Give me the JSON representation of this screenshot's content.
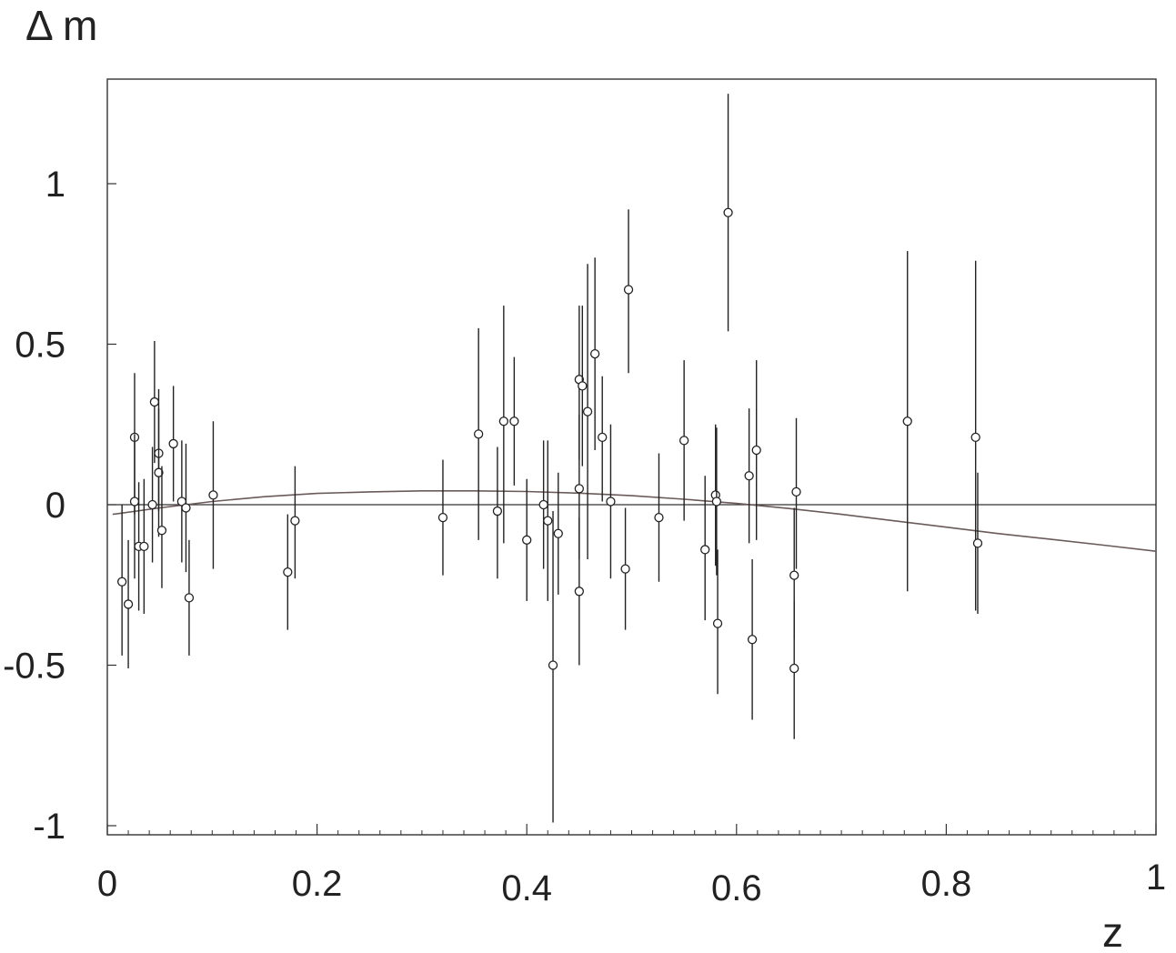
{
  "chart_data": {
    "type": "scatter",
    "ylabel": "Δ m",
    "xlabel": "z",
    "xlim": [
      0,
      1
    ],
    "ylim": [
      -1.02,
      1.33
    ],
    "grid": false,
    "xticks": [
      {
        "v": 0,
        "label": "0"
      },
      {
        "v": 0.2,
        "label": "0.2"
      },
      {
        "v": 0.4,
        "label": "0.4"
      },
      {
        "v": 0.6,
        "label": "0.6"
      },
      {
        "v": 0.8,
        "label": "0.8"
      },
      {
        "v": 1,
        "label": "1"
      }
    ],
    "yticks": [
      {
        "v": 1,
        "label": "1"
      },
      {
        "v": 0.5,
        "label": "0.5"
      },
      {
        "v": 0,
        "label": "0"
      },
      {
        "v": -0.5,
        "label": "-0.5"
      },
      {
        "v": -1,
        "label": "-1"
      }
    ],
    "reference_line_y": 0,
    "points": [
      {
        "z": 0.014,
        "y": -0.24,
        "lo": -0.47,
        "hi": 0.0
      },
      {
        "z": 0.02,
        "y": -0.31,
        "lo": -0.51,
        "hi": -0.11
      },
      {
        "z": 0.026,
        "y": 0.21,
        "lo": -0.03,
        "hi": 0.41
      },
      {
        "z": 0.026,
        "y": 0.01,
        "lo": -0.23,
        "hi": 0.22
      },
      {
        "z": 0.03,
        "y": -0.13,
        "lo": -0.33,
        "hi": 0.07
      },
      {
        "z": 0.035,
        "y": -0.13,
        "lo": -0.34,
        "hi": 0.08
      },
      {
        "z": 0.043,
        "y": 0.0,
        "lo": -0.18,
        "hi": 0.18
      },
      {
        "z": 0.045,
        "y": 0.32,
        "lo": 0.13,
        "hi": 0.51
      },
      {
        "z": 0.049,
        "y": 0.16,
        "lo": -0.02,
        "hi": 0.36
      },
      {
        "z": 0.049,
        "y": 0.1,
        "lo": -0.1,
        "hi": 0.3
      },
      {
        "z": 0.052,
        "y": -0.08,
        "lo": -0.26,
        "hi": 0.12
      },
      {
        "z": 0.063,
        "y": 0.19,
        "lo": 0.01,
        "hi": 0.37
      },
      {
        "z": 0.071,
        "y": 0.01,
        "lo": -0.18,
        "hi": 0.2
      },
      {
        "z": 0.075,
        "y": -0.01,
        "lo": -0.21,
        "hi": 0.19
      },
      {
        "z": 0.078,
        "y": -0.29,
        "lo": -0.47,
        "hi": -0.11
      },
      {
        "z": 0.101,
        "y": 0.03,
        "lo": -0.2,
        "hi": 0.26
      },
      {
        "z": 0.172,
        "y": -0.21,
        "lo": -0.39,
        "hi": -0.03
      },
      {
        "z": 0.179,
        "y": -0.05,
        "lo": -0.23,
        "hi": 0.12
      },
      {
        "z": 0.32,
        "y": -0.04,
        "lo": -0.22,
        "hi": 0.14
      },
      {
        "z": 0.354,
        "y": 0.22,
        "lo": -0.11,
        "hi": 0.55
      },
      {
        "z": 0.372,
        "y": -0.02,
        "lo": -0.23,
        "hi": 0.18
      },
      {
        "z": 0.378,
        "y": 0.26,
        "lo": -0.12,
        "hi": 0.62
      },
      {
        "z": 0.388,
        "y": 0.26,
        "lo": 0.06,
        "hi": 0.46
      },
      {
        "z": 0.4,
        "y": -0.11,
        "lo": -0.3,
        "hi": 0.08
      },
      {
        "z": 0.416,
        "y": 0.0,
        "lo": -0.2,
        "hi": 0.2
      },
      {
        "z": 0.42,
        "y": -0.05,
        "lo": -0.3,
        "hi": 0.2
      },
      {
        "z": 0.425,
        "y": -0.5,
        "lo": -0.99,
        "hi": -0.02
      },
      {
        "z": 0.43,
        "y": -0.09,
        "lo": -0.28,
        "hi": 0.1
      },
      {
        "z": 0.45,
        "y": 0.39,
        "lo": 0.14,
        "hi": 0.62
      },
      {
        "z": 0.45,
        "y": 0.05,
        "lo": -0.17,
        "hi": 0.28
      },
      {
        "z": 0.45,
        "y": -0.27,
        "lo": -0.5,
        "hi": -0.04
      },
      {
        "z": 0.453,
        "y": 0.37,
        "lo": 0.12,
        "hi": 0.62
      },
      {
        "z": 0.458,
        "y": 0.29,
        "lo": -0.17,
        "hi": 0.75
      },
      {
        "z": 0.465,
        "y": 0.47,
        "lo": 0.17,
        "hi": 0.77
      },
      {
        "z": 0.472,
        "y": 0.21,
        "lo": 0.01,
        "hi": 0.4
      },
      {
        "z": 0.48,
        "y": 0.01,
        "lo": -0.23,
        "hi": 0.25
      },
      {
        "z": 0.494,
        "y": -0.2,
        "lo": -0.39,
        "hi": -0.01
      },
      {
        "z": 0.497,
        "y": 0.67,
        "lo": 0.41,
        "hi": 0.92
      },
      {
        "z": 0.526,
        "y": -0.04,
        "lo": -0.24,
        "hi": 0.16
      },
      {
        "z": 0.55,
        "y": 0.2,
        "lo": -0.05,
        "hi": 0.45
      },
      {
        "z": 0.57,
        "y": -0.14,
        "lo": -0.36,
        "hi": 0.09
      },
      {
        "z": 0.58,
        "y": 0.03,
        "lo": -0.19,
        "hi": 0.25
      },
      {
        "z": 0.581,
        "y": 0.01,
        "lo": -0.22,
        "hi": 0.24
      },
      {
        "z": 0.582,
        "y": -0.37,
        "lo": -0.59,
        "hi": -0.14
      },
      {
        "z": 0.592,
        "y": 0.91,
        "lo": 0.54,
        "hi": 1.28
      },
      {
        "z": 0.612,
        "y": 0.09,
        "lo": -0.12,
        "hi": 0.3
      },
      {
        "z": 0.615,
        "y": -0.42,
        "lo": -0.67,
        "hi": -0.17
      },
      {
        "z": 0.619,
        "y": 0.17,
        "lo": -0.11,
        "hi": 0.45
      },
      {
        "z": 0.655,
        "y": -0.22,
        "lo": -0.42,
        "hi": -0.01
      },
      {
        "z": 0.655,
        "y": -0.51,
        "lo": -0.73,
        "hi": -0.3
      },
      {
        "z": 0.657,
        "y": 0.04,
        "lo": -0.2,
        "hi": 0.27
      },
      {
        "z": 0.763,
        "y": 0.26,
        "lo": -0.27,
        "hi": 0.79
      },
      {
        "z": 0.828,
        "y": 0.21,
        "lo": -0.33,
        "hi": 0.76
      },
      {
        "z": 0.83,
        "y": -0.12,
        "lo": -0.34,
        "hi": 0.1
      }
    ],
    "model_curve": {
      "x": [
        0.005,
        0.05,
        0.1,
        0.15,
        0.2,
        0.25,
        0.3,
        0.35,
        0.4,
        0.45,
        0.5,
        0.55,
        0.6,
        0.65,
        0.7,
        0.75,
        0.8,
        0.85,
        0.9,
        0.95,
        1.0
      ],
      "y": [
        -0.03,
        -0.01,
        0.01,
        0.025,
        0.035,
        0.04,
        0.043,
        0.043,
        0.041,
        0.036,
        0.028,
        0.017,
        0.004,
        -0.012,
        -0.03,
        -0.05,
        -0.07,
        -0.09,
        -0.108,
        -0.126,
        -0.145
      ]
    }
  }
}
